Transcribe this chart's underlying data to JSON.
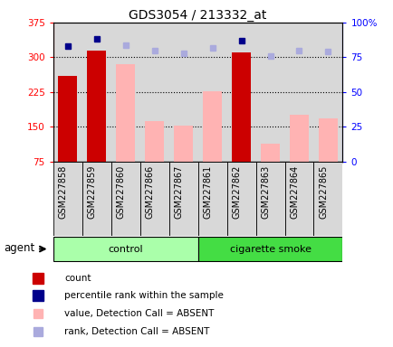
{
  "title": "GDS3054 / 213332_at",
  "samples": [
    "GSM227858",
    "GSM227859",
    "GSM227860",
    "GSM227866",
    "GSM227867",
    "GSM227861",
    "GSM227862",
    "GSM227863",
    "GSM227864",
    "GSM227865"
  ],
  "count_values": [
    260,
    315,
    null,
    null,
    null,
    null,
    310,
    null,
    null,
    null
  ],
  "absent_value_bars": [
    null,
    null,
    285,
    162,
    152,
    226,
    null,
    113,
    175,
    168
  ],
  "rank_dots_present": [
    83,
    88,
    null,
    null,
    null,
    null,
    87,
    null,
    null,
    null
  ],
  "rank_dots_absent": [
    null,
    null,
    84,
    80,
    78,
    82,
    null,
    76,
    80,
    79
  ],
  "ylim_left": [
    75,
    375
  ],
  "ylim_right": [
    0,
    100
  ],
  "yticks_left": [
    75,
    150,
    225,
    300,
    375
  ],
  "ytick_labels_left": [
    "75",
    "150",
    "225",
    "300",
    "375"
  ],
  "yticks_right": [
    0,
    25,
    50,
    75,
    100
  ],
  "ytick_labels_right": [
    "0",
    "25",
    "50",
    "75",
    "100%"
  ],
  "count_color": "#cc0000",
  "absent_value_color": "#ffb3b3",
  "rank_present_color": "#00008b",
  "rank_absent_color": "#aaaadd",
  "col_bg_color": "#d8d8d8",
  "group_control_color": "#aaffaa",
  "group_smoke_color": "#44dd44",
  "bar_width": 0.65
}
